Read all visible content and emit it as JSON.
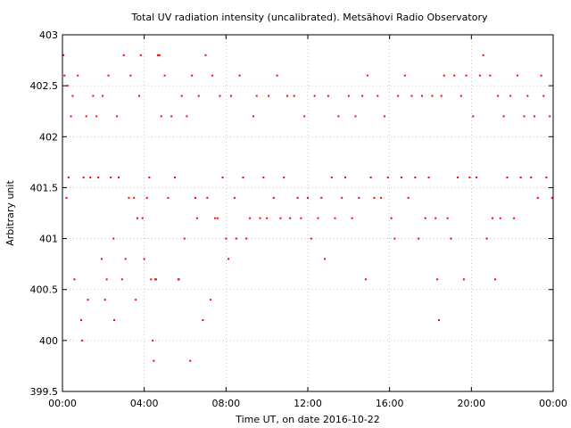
{
  "chart_data": {
    "type": "scatter",
    "title": "Total UV radiation intensity (uncalibrated). Metsähovi Radio Observatory",
    "xlabel": "Time UT, on date 2016-10-22",
    "ylabel": "Arbitrary unit",
    "date": "2016-10-22",
    "xlim": [
      0,
      1440
    ],
    "ylim": [
      399.5,
      403
    ],
    "x_unit": "minutes UT",
    "x_ticks": [
      0,
      240,
      480,
      720,
      960,
      1200,
      1440
    ],
    "x_tick_labels": [
      "00:00",
      "04:00",
      "08:00",
      "12:00",
      "16:00",
      "20:00",
      "00:00"
    ],
    "y_ticks": [
      399.5,
      400,
      400.5,
      401,
      401.5,
      402,
      402.5,
      403
    ],
    "y_tick_labels": [
      "399.5",
      "400",
      "400.5",
      "401",
      "401.5",
      "402",
      "402.5",
      "403"
    ],
    "grid": true,
    "marker_color": "#ff0000",
    "series": [
      {
        "name": "",
        "points": [
          [
            3,
            402.8
          ],
          [
            6,
            402.6
          ],
          [
            12,
            401.4
          ],
          [
            15,
            402.5
          ],
          [
            18,
            401.6
          ],
          [
            25,
            402.2
          ],
          [
            30,
            402.4
          ],
          [
            35,
            400.6
          ],
          [
            45,
            402.6
          ],
          [
            55,
            400.2
          ],
          [
            58,
            400.0
          ],
          [
            62,
            401.6
          ],
          [
            70,
            402.2
          ],
          [
            75,
            400.4
          ],
          [
            82,
            401.6
          ],
          [
            90,
            402.4
          ],
          [
            100,
            402.2
          ],
          [
            105,
            401.6
          ],
          [
            115,
            400.8
          ],
          [
            118,
            402.4
          ],
          [
            125,
            400.4
          ],
          [
            130,
            400.6
          ],
          [
            135,
            402.6
          ],
          [
            142,
            401.6
          ],
          [
            150,
            401.0
          ],
          [
            152,
            400.2
          ],
          [
            160,
            402.2
          ],
          [
            165,
            401.6
          ],
          [
            175,
            400.6
          ],
          [
            180,
            402.8
          ],
          [
            185,
            400.8
          ],
          [
            195,
            401.4
          ],
          [
            200,
            402.6
          ],
          [
            210,
            401.4
          ],
          [
            215,
            400.4
          ],
          [
            220,
            401.2
          ],
          [
            225,
            402.4
          ],
          [
            230,
            402.8
          ],
          [
            235,
            401.2
          ],
          [
            240,
            400.8
          ],
          [
            248,
            401.4
          ],
          [
            255,
            401.6
          ],
          [
            260,
            400.6
          ],
          [
            265,
            400.0
          ],
          [
            268,
            399.8
          ],
          [
            272,
            400.6
          ],
          [
            275,
            400.6
          ],
          [
            280,
            402.8
          ],
          [
            285,
            402.8
          ],
          [
            290,
            402.2
          ],
          [
            300,
            402.6
          ],
          [
            310,
            401.4
          ],
          [
            320,
            402.2
          ],
          [
            330,
            401.6
          ],
          [
            340,
            400.6
          ],
          [
            342,
            400.6
          ],
          [
            350,
            402.4
          ],
          [
            358,
            401.0
          ],
          [
            365,
            402.2
          ],
          [
            375,
            399.8
          ],
          [
            380,
            402.6
          ],
          [
            390,
            401.4
          ],
          [
            395,
            401.2
          ],
          [
            400,
            402.4
          ],
          [
            412,
            400.2
          ],
          [
            420,
            402.8
          ],
          [
            425,
            401.4
          ],
          [
            435,
            400.4
          ],
          [
            440,
            402.6
          ],
          [
            448,
            401.2
          ],
          [
            455,
            401.2
          ],
          [
            462,
            402.4
          ],
          [
            470,
            401.6
          ],
          [
            480,
            401.0
          ],
          [
            487,
            400.8
          ],
          [
            495,
            402.4
          ],
          [
            505,
            401.4
          ],
          [
            510,
            401.0
          ],
          [
            520,
            402.6
          ],
          [
            530,
            401.6
          ],
          [
            540,
            401.0
          ],
          [
            550,
            401.2
          ],
          [
            560,
            402.2
          ],
          [
            570,
            402.4
          ],
          [
            580,
            401.2
          ],
          [
            590,
            401.6
          ],
          [
            600,
            401.2
          ],
          [
            605,
            402.4
          ],
          [
            620,
            401.4
          ],
          [
            630,
            402.6
          ],
          [
            640,
            401.2
          ],
          [
            650,
            401.6
          ],
          [
            660,
            402.4
          ],
          [
            668,
            401.2
          ],
          [
            680,
            402.4
          ],
          [
            690,
            401.4
          ],
          [
            700,
            401.2
          ],
          [
            710,
            402.2
          ],
          [
            720,
            401.4
          ],
          [
            730,
            401.0
          ],
          [
            740,
            402.4
          ],
          [
            750,
            401.2
          ],
          [
            760,
            401.4
          ],
          [
            770,
            400.8
          ],
          [
            780,
            402.4
          ],
          [
            790,
            401.6
          ],
          [
            800,
            401.2
          ],
          [
            810,
            402.2
          ],
          [
            820,
            401.4
          ],
          [
            830,
            401.6
          ],
          [
            840,
            402.4
          ],
          [
            850,
            401.2
          ],
          [
            860,
            402.2
          ],
          [
            870,
            401.4
          ],
          [
            880,
            402.4
          ],
          [
            890,
            400.6
          ],
          [
            895,
            402.6
          ],
          [
            905,
            401.6
          ],
          [
            915,
            401.4
          ],
          [
            925,
            402.4
          ],
          [
            935,
            401.4
          ],
          [
            945,
            402.2
          ],
          [
            955,
            401.6
          ],
          [
            965,
            401.2
          ],
          [
            975,
            401.0
          ],
          [
            985,
            402.4
          ],
          [
            995,
            401.6
          ],
          [
            1005,
            402.6
          ],
          [
            1015,
            401.4
          ],
          [
            1025,
            402.4
          ],
          [
            1035,
            401.6
          ],
          [
            1045,
            401.0
          ],
          [
            1055,
            402.4
          ],
          [
            1065,
            401.2
          ],
          [
            1075,
            401.6
          ],
          [
            1085,
            402.4
          ],
          [
            1095,
            401.2
          ],
          [
            1100,
            400.6
          ],
          [
            1105,
            400.2
          ],
          [
            1112,
            402.4
          ],
          [
            1120,
            402.6
          ],
          [
            1130,
            401.2
          ],
          [
            1140,
            401.0
          ],
          [
            1150,
            402.6
          ],
          [
            1160,
            401.6
          ],
          [
            1170,
            402.4
          ],
          [
            1178,
            400.6
          ],
          [
            1185,
            402.6
          ],
          [
            1195,
            401.6
          ],
          [
            1205,
            402.2
          ],
          [
            1215,
            401.6
          ],
          [
            1225,
            402.6
          ],
          [
            1235,
            402.8
          ],
          [
            1245,
            401.0
          ],
          [
            1255,
            402.6
          ],
          [
            1262,
            401.2
          ],
          [
            1270,
            400.6
          ],
          [
            1278,
            402.4
          ],
          [
            1285,
            401.2
          ],
          [
            1295,
            402.2
          ],
          [
            1305,
            401.6
          ],
          [
            1315,
            402.4
          ],
          [
            1325,
            401.2
          ],
          [
            1335,
            402.6
          ],
          [
            1345,
            401.6
          ],
          [
            1355,
            402.2
          ],
          [
            1365,
            402.4
          ],
          [
            1375,
            401.6
          ],
          [
            1385,
            402.2
          ],
          [
            1395,
            401.4
          ],
          [
            1405,
            402.6
          ],
          [
            1412,
            402.4
          ],
          [
            1420,
            401.6
          ],
          [
            1430,
            402.2
          ],
          [
            1437,
            401.4
          ]
        ]
      }
    ]
  }
}
